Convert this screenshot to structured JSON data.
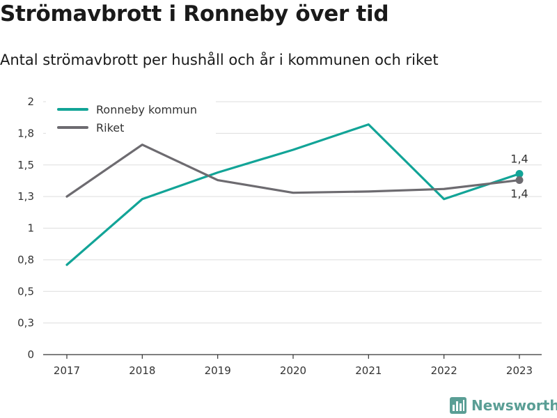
{
  "title": "Strömavbrott i Ronneby över tid",
  "subtitle": "Antal strömavbrott per hushåll och år i kommunen och riket",
  "brand": {
    "name": "Newsworthy",
    "icon": "chart-bar-icon",
    "color": "#5a9e95"
  },
  "chart_data": {
    "type": "line",
    "categories": [
      "2017",
      "2018",
      "2019",
      "2020",
      "2021",
      "2022",
      "2023"
    ],
    "ylim": [
      0,
      2
    ],
    "yticks": [
      0,
      0.25,
      0.5,
      0.75,
      1,
      1.25,
      1.5,
      1.75,
      2
    ],
    "ytick_labels": [
      "0",
      "0,3",
      "0,5",
      "0,8",
      "1",
      "1,3",
      "1,5",
      "1,8",
      "2"
    ],
    "grid": true,
    "legend": "top-left",
    "xlabel": "",
    "ylabel": "",
    "series": [
      {
        "name": "Ronneby kommun",
        "color": "#12a497",
        "values": [
          0.71,
          1.23,
          1.44,
          1.62,
          1.82,
          1.23,
          1.43
        ],
        "end_label": "1,4"
      },
      {
        "name": "Riket",
        "color": "#6d6b70",
        "values": [
          1.25,
          1.66,
          1.38,
          1.28,
          1.29,
          1.31,
          1.38
        ],
        "end_label": "1,4"
      }
    ]
  }
}
